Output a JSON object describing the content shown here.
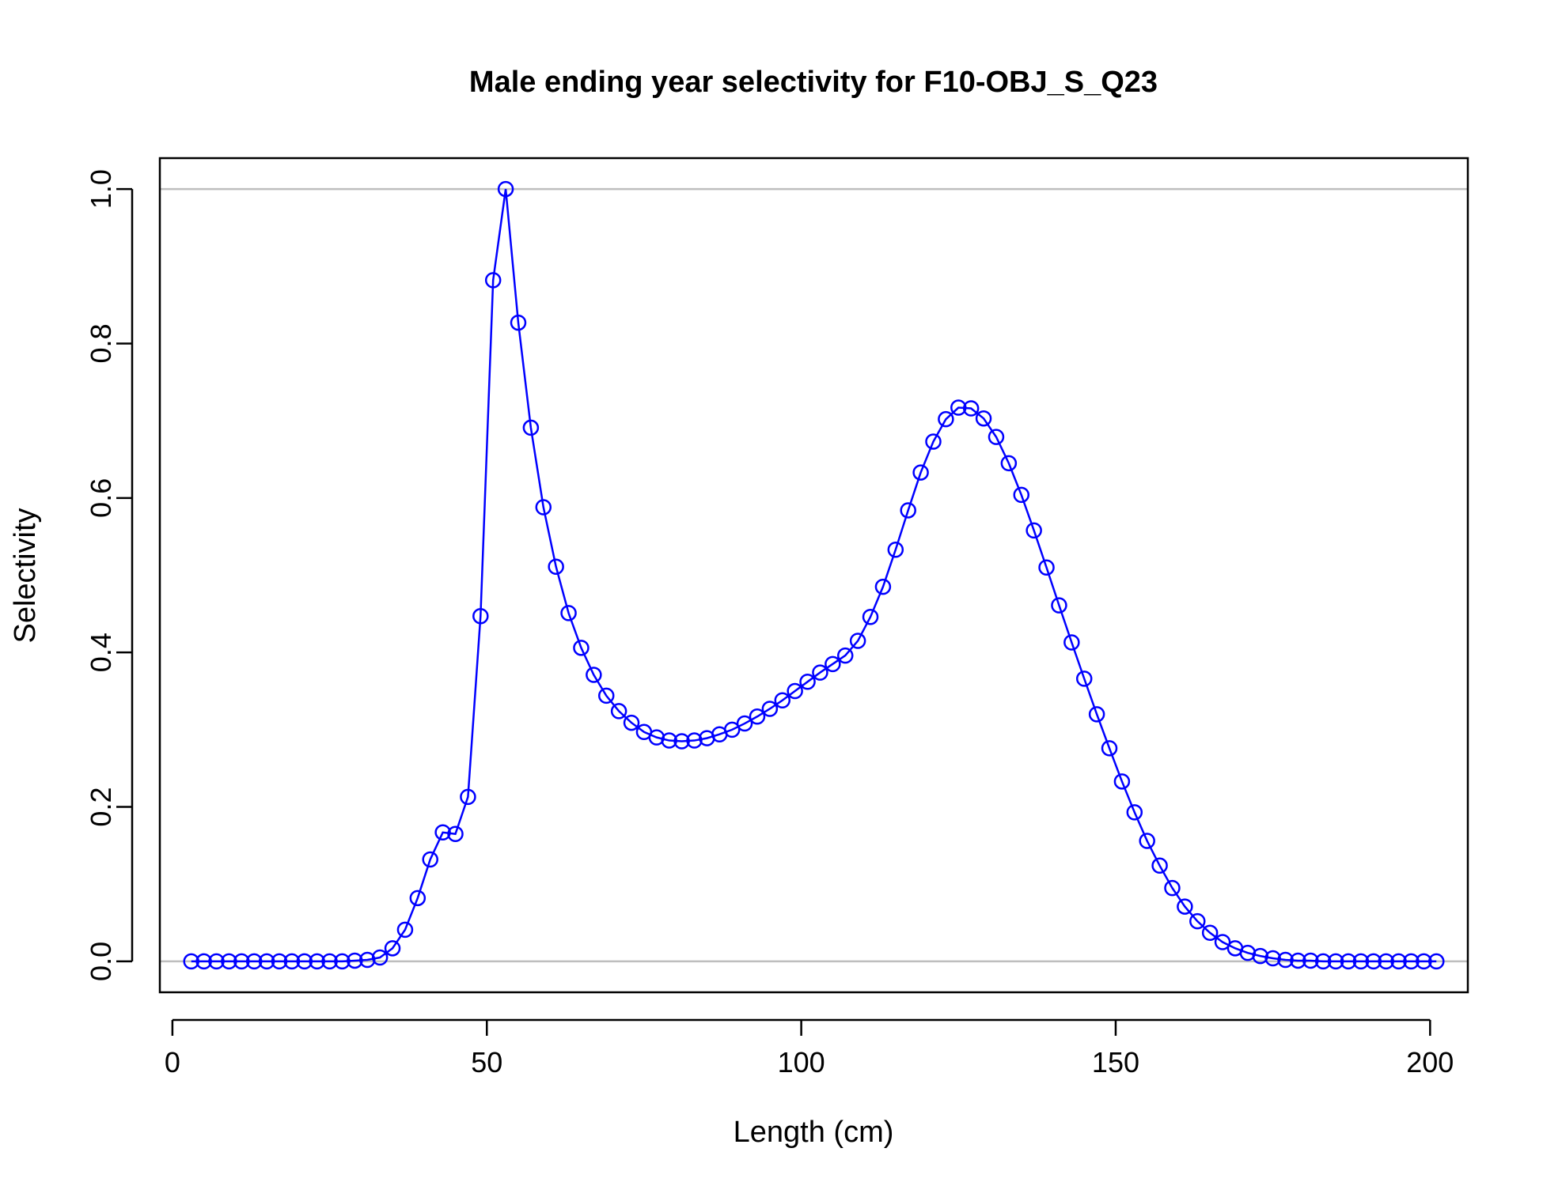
{
  "chart_data": {
    "type": "line",
    "title": "Male ending year selectivity for F10-OBJ_S_Q23",
    "xlabel": "Length (cm)",
    "ylabel": "Selectivity",
    "xlim": [
      -2,
      206
    ],
    "ylim": [
      -0.04,
      1.04
    ],
    "x_ticks": [
      0,
      50,
      100,
      150,
      200
    ],
    "x_tick_labels": [
      "0",
      "50",
      "100",
      "150",
      "200"
    ],
    "y_ticks": [
      0.0,
      0.2,
      0.4,
      0.6,
      0.8,
      1.0
    ],
    "y_tick_labels": [
      "0.0",
      "0.2",
      "0.4",
      "0.6",
      "0.8",
      "1.0"
    ],
    "reference_lines": [
      0,
      1
    ],
    "colors": {
      "series": "#0000ff",
      "reference": "#bebebe",
      "axes": "#000000"
    },
    "marker": "open-circle",
    "series": [
      {
        "x": [
          3,
          5,
          7,
          9,
          11,
          13,
          15,
          17,
          19,
          21,
          23,
          25,
          27,
          29,
          31,
          33,
          35,
          37,
          39,
          41,
          43,
          45,
          47,
          49,
          51,
          53,
          55,
          57,
          59,
          61,
          63,
          65,
          67,
          69,
          71,
          73,
          75,
          77,
          79,
          81,
          83,
          85,
          87,
          89,
          91,
          93,
          95,
          97,
          99,
          101,
          103,
          105,
          107,
          109,
          111,
          113,
          115,
          117,
          119,
          121,
          123,
          125,
          127,
          129,
          131,
          133,
          135,
          137,
          139,
          141,
          143,
          145,
          147,
          149,
          151,
          153,
          155,
          157,
          159,
          161,
          163,
          165,
          167,
          169,
          171,
          173,
          175,
          177,
          179,
          181,
          183,
          185,
          187,
          189,
          191,
          193,
          195,
          197,
          199,
          201
        ],
        "values": [
          0.0,
          0.0,
          0.0,
          0.0,
          0.0,
          0.0,
          0.0,
          0.0,
          0.0,
          0.0,
          0.0,
          0.0,
          0.0,
          0.001,
          0.002,
          0.005,
          0.017,
          0.041,
          0.082,
          0.132,
          0.167,
          0.165,
          0.213,
          0.447,
          0.882,
          1.0,
          0.827,
          0.691,
          0.588,
          0.511,
          0.451,
          0.406,
          0.371,
          0.344,
          0.324,
          0.309,
          0.297,
          0.29,
          0.286,
          0.285,
          0.286,
          0.289,
          0.294,
          0.3,
          0.308,
          0.317,
          0.327,
          0.338,
          0.35,
          0.362,
          0.374,
          0.385,
          0.396,
          0.415,
          0.446,
          0.485,
          0.533,
          0.584,
          0.633,
          0.673,
          0.702,
          0.717,
          0.716,
          0.703,
          0.679,
          0.645,
          0.604,
          0.558,
          0.51,
          0.461,
          0.413,
          0.366,
          0.32,
          0.276,
          0.233,
          0.193,
          0.156,
          0.124,
          0.095,
          0.071,
          0.052,
          0.037,
          0.025,
          0.017,
          0.011,
          0.007,
          0.004,
          0.002,
          0.001,
          0.001,
          0.0,
          0.0,
          0.0,
          0.0,
          0.0,
          0.0,
          0.0,
          0.0,
          0.0,
          0.0
        ]
      }
    ]
  }
}
